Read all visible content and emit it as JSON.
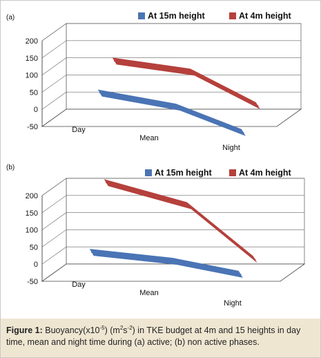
{
  "chart_data": [
    {
      "panel_label": "(a)",
      "type": "line",
      "view": "3d",
      "categories": [
        "Day",
        "Mean",
        "Night"
      ],
      "ytick_labels": [
        "200",
        "150",
        "100",
        "50",
        "0",
        "-50"
      ],
      "ylim": [
        -50,
        200
      ],
      "series": [
        {
          "name": "At 15m height",
          "values": [
            45,
            20,
            -38
          ]
        },
        {
          "name": "At 4m height",
          "values": [
            108,
            92,
            10
          ]
        }
      ],
      "legend": "top-right",
      "grid": true
    },
    {
      "panel_label": "(b)",
      "type": "line",
      "view": "3d",
      "categories": [
        "Day",
        "Mean",
        "Night"
      ],
      "ytick_labels": [
        "200",
        "150",
        "100",
        "50",
        "0",
        "-50"
      ],
      "ylim": [
        -50,
        200
      ],
      "series": [
        {
          "name": "At 15m height",
          "values": [
            32,
            18,
            -8
          ]
        },
        {
          "name": "At 4m height",
          "values": [
            205,
            150,
            5
          ]
        }
      ],
      "legend": "top-right",
      "grid": true
    }
  ],
  "colors": {
    "series_15m": "#4a74b5",
    "series_4m": "#b5403c",
    "caption_bg": "#efe6d2"
  },
  "caption": {
    "label": "Figure 1:",
    "text_before_sup1": " Buoyancy(x10",
    "sup1": "-5",
    "text_mid": ") (m",
    "sup2": "2",
    "text_mid2": "s",
    "sup3": "-2",
    "text_after": ") in TKE budget at 4m and 15 heights in day time, mean and night time during (a) active; (b) non active phases."
  }
}
